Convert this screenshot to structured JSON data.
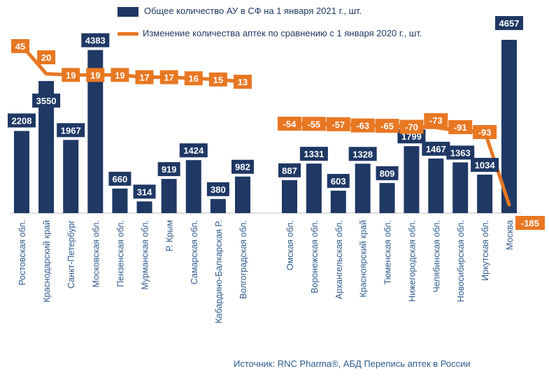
{
  "chart_data": {
    "type": "bar",
    "categories": [
      "Ростовская обл.",
      "Краснодарский край",
      "Санкт-Петербург",
      "Московская обл.",
      "Пензенская обл.",
      "Мурманская обл.",
      "Р. Крым",
      "Самарская обл.",
      "Кабардино-Балкарская Р.",
      "Волгоградская обл.",
      "Омская обл.",
      "Воронежская обл.",
      "Архангельская обл.",
      "Красноярский край",
      "Тюменская обл.",
      "Нижегородская обл.",
      "Челябинская обл.",
      "Новосибирская обл.",
      "Иркутская обл.",
      "Москва"
    ],
    "series": [
      {
        "name": "Общее количество АУ в СФ на 1 января 2021 г., шт.",
        "type": "bar",
        "color": "#1f3864",
        "values": [
          2208,
          3550,
          1967,
          4383,
          660,
          314,
          919,
          1424,
          380,
          982,
          887,
          1331,
          603,
          1328,
          809,
          1799,
          1467,
          1363,
          1034,
          4657
        ]
      },
      {
        "name": "Изменение количества аптек по сравнению с 1 января 2020 г., шт.",
        "type": "line",
        "color": "#e87722",
        "values": [
          45,
          20,
          19,
          19,
          19,
          17,
          17,
          16,
          15,
          13,
          -54,
          -55,
          -57,
          -63,
          -65,
          -70,
          -73,
          -91,
          -93,
          -185
        ]
      }
    ],
    "legend_position": "top",
    "grid": false
  },
  "source_note": "Источник: RNC Pharma®, АБД Перепись аптек в России"
}
